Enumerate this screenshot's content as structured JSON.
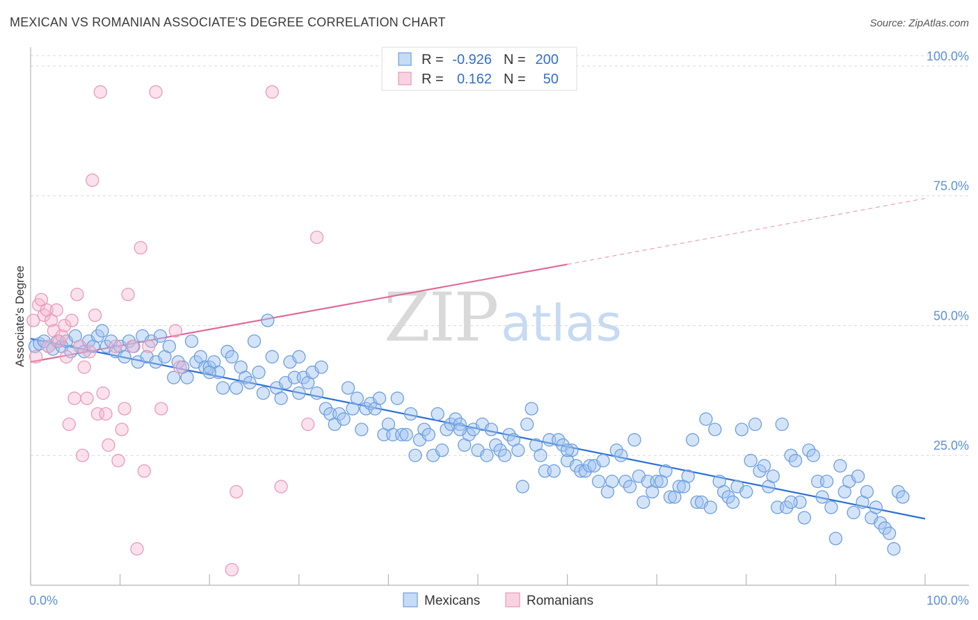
{
  "chart_data": {
    "type": "scatter",
    "title": "MEXICAN VS ROMANIAN ASSOCIATE'S DEGREE CORRELATION CHART",
    "source": "Source: ZipAtlas.com",
    "ylabel": "Associate's Degree",
    "xlabel": "",
    "xlim": [
      0,
      100
    ],
    "ylim": [
      0,
      102
    ],
    "yticks": [
      {
        "value": 25,
        "label": "25.0%"
      },
      {
        "value": 50,
        "label": "50.0%"
      },
      {
        "value": 75,
        "label": "75.0%"
      },
      {
        "value": 100,
        "label": "100.0%"
      }
    ],
    "xticks_labels": {
      "min": "0.0%",
      "max": "100.0%"
    },
    "watermark": {
      "zip": "ZIP",
      "atlas": "atlas"
    },
    "legend": [
      {
        "name": "Mexicans",
        "r_label": "R =",
        "r": "-0.926",
        "n_label": "N =",
        "n": "200",
        "color": "#6d9ee0"
      },
      {
        "name": "Romanians",
        "r_label": "R =",
        "r": "0.162",
        "n_label": "N =",
        "n": "50",
        "color": "#e89ab6"
      }
    ],
    "series": [
      {
        "name": "Mexicans",
        "color": "#6d9ee0",
        "trend": {
          "x0": 0,
          "y0": 47.5,
          "x1": 100,
          "y1": 12.8
        },
        "points": [
          [
            0.5,
            46
          ],
          [
            1,
            46.5
          ],
          [
            1.5,
            47
          ],
          [
            2,
            46
          ],
          [
            2.5,
            45.5
          ],
          [
            3,
            47
          ],
          [
            3.5,
            46
          ],
          [
            4,
            47
          ],
          [
            4.5,
            45
          ],
          [
            5,
            48
          ],
          [
            5.5,
            46
          ],
          [
            6,
            45
          ],
          [
            6.5,
            47
          ],
          [
            7,
            46
          ],
          [
            7.5,
            48
          ],
          [
            8,
            49
          ],
          [
            8.5,
            46
          ],
          [
            9,
            47
          ],
          [
            9.5,
            45
          ],
          [
            10,
            46
          ],
          [
            10.5,
            44
          ],
          [
            11,
            47
          ],
          [
            11.5,
            46
          ],
          [
            12,
            43
          ],
          [
            12.5,
            48
          ],
          [
            13,
            44
          ],
          [
            13.5,
            47
          ],
          [
            14,
            43
          ],
          [
            14.5,
            48
          ],
          [
            15,
            44
          ],
          [
            15.5,
            46
          ],
          [
            16,
            40
          ],
          [
            16.5,
            43
          ],
          [
            17,
            42
          ],
          [
            17.5,
            40
          ],
          [
            18,
            47
          ],
          [
            18.5,
            43
          ],
          [
            19,
            44
          ],
          [
            19.5,
            42
          ],
          [
            20,
            42
          ],
          [
            20.5,
            43
          ],
          [
            21,
            41
          ],
          [
            21.5,
            38
          ],
          [
            22,
            45
          ],
          [
            22.5,
            44
          ],
          [
            23,
            38
          ],
          [
            23.5,
            42
          ],
          [
            24,
            40
          ],
          [
            24.5,
            39
          ],
          [
            25,
            47
          ],
          [
            25.5,
            41
          ],
          [
            26,
            37
          ],
          [
            26.5,
            51
          ],
          [
            27,
            44
          ],
          [
            27.5,
            38
          ],
          [
            28,
            36
          ],
          [
            28.5,
            39
          ],
          [
            29,
            43
          ],
          [
            29.5,
            40
          ],
          [
            30,
            37
          ],
          [
            30.5,
            40
          ],
          [
            31,
            39
          ],
          [
            31.5,
            41
          ],
          [
            32,
            37
          ],
          [
            32.5,
            42
          ],
          [
            33,
            34
          ],
          [
            33.5,
            33
          ],
          [
            34,
            31
          ],
          [
            34.5,
            33
          ],
          [
            35,
            32
          ],
          [
            35.5,
            38
          ],
          [
            36,
            34
          ],
          [
            36.5,
            36
          ],
          [
            37,
            30
          ],
          [
            37.5,
            34
          ],
          [
            38,
            35
          ],
          [
            38.5,
            34
          ],
          [
            39,
            36
          ],
          [
            39.5,
            29
          ],
          [
            40,
            31
          ],
          [
            40.5,
            29
          ],
          [
            41,
            36
          ],
          [
            41.5,
            29
          ],
          [
            42,
            29
          ],
          [
            42.5,
            33
          ],
          [
            43,
            25
          ],
          [
            43.5,
            28
          ],
          [
            44,
            30
          ],
          [
            44.5,
            29
          ],
          [
            45,
            25
          ],
          [
            45.5,
            33
          ],
          [
            46,
            26
          ],
          [
            46.5,
            30
          ],
          [
            47,
            31
          ],
          [
            47.5,
            32
          ],
          [
            48,
            31
          ],
          [
            48.5,
            27
          ],
          [
            49,
            29
          ],
          [
            49.5,
            30
          ],
          [
            50,
            26
          ],
          [
            50.5,
            31
          ],
          [
            51,
            25
          ],
          [
            51.5,
            30
          ],
          [
            52,
            27
          ],
          [
            52.5,
            26
          ],
          [
            53,
            25
          ],
          [
            53.5,
            29
          ],
          [
            54,
            28
          ],
          [
            54.5,
            26
          ],
          [
            55,
            19
          ],
          [
            55.5,
            31
          ],
          [
            56,
            34
          ],
          [
            56.5,
            27
          ],
          [
            57,
            25
          ],
          [
            57.5,
            22
          ],
          [
            58,
            28
          ],
          [
            58.5,
            22
          ],
          [
            59,
            28
          ],
          [
            59.5,
            27
          ],
          [
            60,
            24
          ],
          [
            60.5,
            26
          ],
          [
            61,
            23
          ],
          [
            61.5,
            22
          ],
          [
            62,
            22
          ],
          [
            62.5,
            23
          ],
          [
            63,
            23
          ],
          [
            63.5,
            20
          ],
          [
            64,
            24
          ],
          [
            64.5,
            18
          ],
          [
            65,
            20
          ],
          [
            65.5,
            26
          ],
          [
            66,
            25
          ],
          [
            66.5,
            20
          ],
          [
            67,
            19
          ],
          [
            67.5,
            28
          ],
          [
            68,
            21
          ],
          [
            68.5,
            16
          ],
          [
            69,
            20
          ],
          [
            69.5,
            18
          ],
          [
            70,
            20
          ],
          [
            70.5,
            20
          ],
          [
            71,
            22
          ],
          [
            71.5,
            17
          ],
          [
            72,
            17
          ],
          [
            72.5,
            19
          ],
          [
            73,
            19
          ],
          [
            73.5,
            21
          ],
          [
            74,
            28
          ],
          [
            74.5,
            16
          ],
          [
            75,
            16
          ],
          [
            75.5,
            32
          ],
          [
            76,
            15
          ],
          [
            76.5,
            30
          ],
          [
            77,
            20
          ],
          [
            77.5,
            18
          ],
          [
            78,
            17
          ],
          [
            78.5,
            16
          ],
          [
            79,
            19
          ],
          [
            79.5,
            30
          ],
          [
            80,
            18
          ],
          [
            80.5,
            24
          ],
          [
            81,
            31
          ],
          [
            81.5,
            22
          ],
          [
            82,
            23
          ],
          [
            82.5,
            19
          ],
          [
            83,
            21
          ],
          [
            83.5,
            15
          ],
          [
            84,
            31
          ],
          [
            84.5,
            15
          ],
          [
            85,
            25
          ],
          [
            85.5,
            24
          ],
          [
            86,
            16
          ],
          [
            86.5,
            13
          ],
          [
            87,
            26
          ],
          [
            87.5,
            25
          ],
          [
            88,
            20
          ],
          [
            88.5,
            17
          ],
          [
            89,
            20
          ],
          [
            89.5,
            15
          ],
          [
            90,
            9
          ],
          [
            90.5,
            23
          ],
          [
            91,
            18
          ],
          [
            91.5,
            20
          ],
          [
            92,
            14
          ],
          [
            92.5,
            21
          ],
          [
            93,
            16
          ],
          [
            93.5,
            18
          ],
          [
            94,
            13
          ],
          [
            94.5,
            15
          ],
          [
            95,
            12
          ],
          [
            95.5,
            11
          ],
          [
            96,
            10
          ],
          [
            96.5,
            7
          ],
          [
            97,
            18
          ],
          [
            97.5,
            17
          ],
          [
            60,
            26
          ],
          [
            48,
            30
          ],
          [
            30,
            44
          ],
          [
            20,
            41
          ],
          [
            85,
            16
          ]
        ]
      },
      {
        "name": "Romanians",
        "color": "#e89ab6",
        "trend": {
          "x0": 0,
          "y0": 43,
          "x1": 60,
          "y1": 61.8,
          "x2": 100,
          "y2": 74.5
        },
        "points": [
          [
            0.3,
            51
          ],
          [
            0.6,
            44
          ],
          [
            0.9,
            54
          ],
          [
            1.2,
            55
          ],
          [
            1.5,
            52
          ],
          [
            1.8,
            53
          ],
          [
            2,
            46
          ],
          [
            2.3,
            51
          ],
          [
            2.6,
            49
          ],
          [
            2.9,
            53
          ],
          [
            3.2,
            47
          ],
          [
            3.5,
            48
          ],
          [
            3.8,
            50
          ],
          [
            4,
            44
          ],
          [
            4.3,
            31
          ],
          [
            4.6,
            51
          ],
          [
            4.9,
            36
          ],
          [
            5.2,
            56
          ],
          [
            5.5,
            46
          ],
          [
            5.8,
            25
          ],
          [
            6,
            42
          ],
          [
            6.3,
            36
          ],
          [
            6.6,
            45
          ],
          [
            6.9,
            78
          ],
          [
            7.2,
            52
          ],
          [
            7.5,
            33
          ],
          [
            7.8,
            95
          ],
          [
            8.1,
            37
          ],
          [
            8.4,
            33
          ],
          [
            8.7,
            27
          ],
          [
            9.5,
            46
          ],
          [
            9.8,
            24
          ],
          [
            10.2,
            30
          ],
          [
            10.5,
            34
          ],
          [
            10.9,
            56
          ],
          [
            11.4,
            46
          ],
          [
            11.9,
            7
          ],
          [
            12.3,
            65
          ],
          [
            12.7,
            22
          ],
          [
            13.2,
            46
          ],
          [
            14,
            95
          ],
          [
            14.6,
            34
          ],
          [
            16.2,
            49
          ],
          [
            16.7,
            42
          ],
          [
            22.5,
            3
          ],
          [
            23,
            18
          ],
          [
            27,
            95
          ],
          [
            28,
            19
          ],
          [
            31,
            31
          ],
          [
            32,
            67
          ]
        ]
      }
    ]
  }
}
